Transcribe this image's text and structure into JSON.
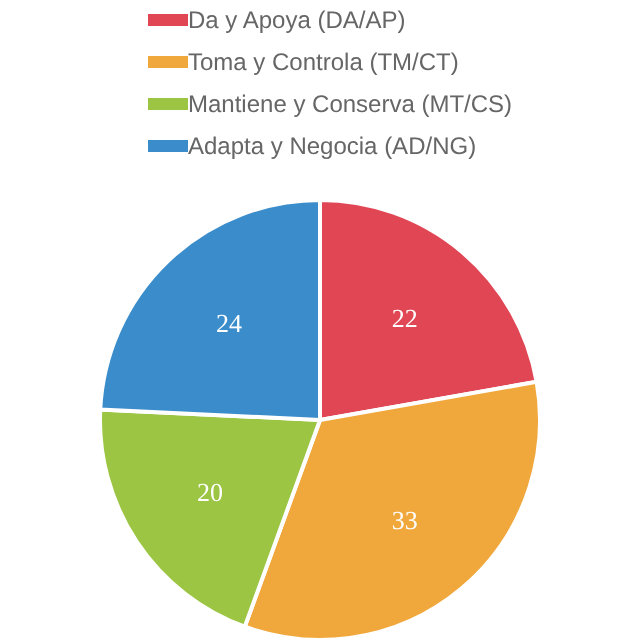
{
  "chart_data": {
    "type": "pie",
    "categories": [
      "Da y Apoya (DA/AP)",
      "Toma y Controla (TM/CT)",
      "Mantiene y Conserva (MT/CS)",
      "Adapta y Negocia (AD/NG)"
    ],
    "values": [
      22,
      33,
      20,
      24
    ],
    "colors": [
      "#e04654",
      "#f0a83c",
      "#9bc543",
      "#3a8ccb"
    ],
    "legend": "top",
    "data_labels": true
  }
}
